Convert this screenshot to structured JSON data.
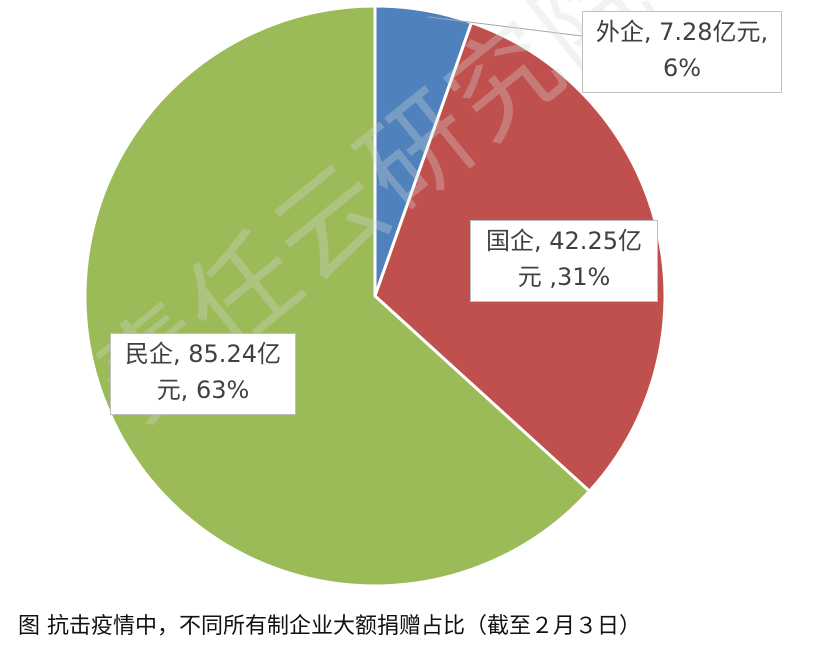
{
  "chart_data": {
    "type": "pie",
    "title": "",
    "slices": [
      {
        "name": "外企",
        "value": 7.28,
        "unit": "亿元",
        "percent_label": "6%",
        "color": "#4f81bd"
      },
      {
        "name": "国企",
        "value": 42.25,
        "unit": "亿元",
        "percent_label": "31%",
        "color": "#c0504d"
      },
      {
        "name": "民企",
        "value": 85.24,
        "unit": "亿元",
        "percent_label": "63%",
        "color": "#9bbb59"
      }
    ],
    "start_angle": "12 o'clock",
    "direction": "clockwise",
    "labels": {
      "foreign": {
        "line1": "外企, 7.28亿元,",
        "line2": "6%"
      },
      "state": {
        "line1": "国企, 42.25亿",
        "line2": "元 ,31%"
      },
      "private": {
        "line1": "民企, 85.24亿",
        "line2": "元, 63%"
      }
    }
  },
  "watermark": "责任云研究院",
  "caption": "图  抗击疫情中，不同所有制企业大额捐赠占比（截至２月３日）"
}
